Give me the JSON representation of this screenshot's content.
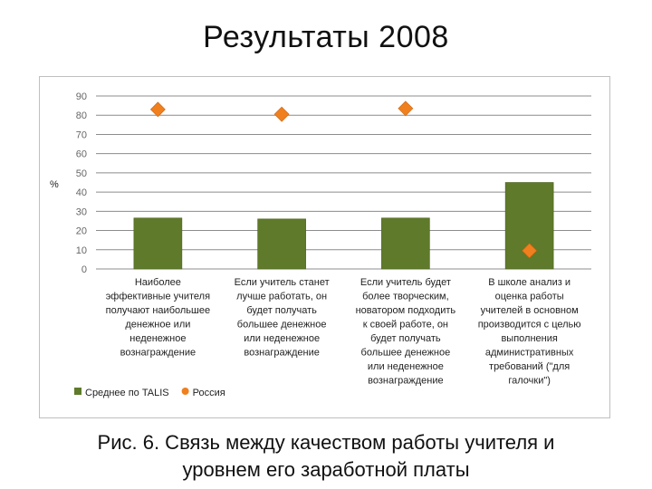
{
  "slide": {
    "title": "Результаты 2008",
    "caption_line1": "Рис. 6. Связь между качеством работы учителя и",
    "caption_line2": "уровнем его заработной платы"
  },
  "chart_data": {
    "type": "bar",
    "ylabel": "%",
    "ylim": [
      0,
      90
    ],
    "yticks": [
      0,
      10,
      20,
      30,
      40,
      50,
      60,
      70,
      80,
      90
    ],
    "grid": true,
    "legend_position": "bottom-left",
    "categories": [
      [
        "Наиболее",
        "эффективные учителя",
        "получают наибольшее",
        "денежное или",
        "неденежное",
        "вознаграждение"
      ],
      [
        "Если учитель станет",
        "лучше работать, он",
        "будет получать",
        "большее денежное",
        "или неденежное",
        "вознаграждение"
      ],
      [
        "Если учитель будет",
        "более творческим,",
        "новатором подходить",
        "к своей работе, он",
        "будет получать",
        "большее денежное",
        "или неденежное",
        "вознаграждение"
      ],
      [
        "В школе анализ и",
        "оценка работы",
        "учителей в основном",
        "производится с целью",
        "выполнения",
        "административных",
        "требований (\"для",
        "галочки\")"
      ]
    ],
    "series": [
      {
        "name": "Среднее по TALIS",
        "kind": "bar",
        "color": "#5f7a2a",
        "values": [
          26.5,
          26,
          26.5,
          45
        ]
      },
      {
        "name": "Россия",
        "kind": "marker",
        "color": "#f07f1e",
        "values": [
          83,
          80.5,
          83.5,
          9.5
        ]
      }
    ]
  }
}
